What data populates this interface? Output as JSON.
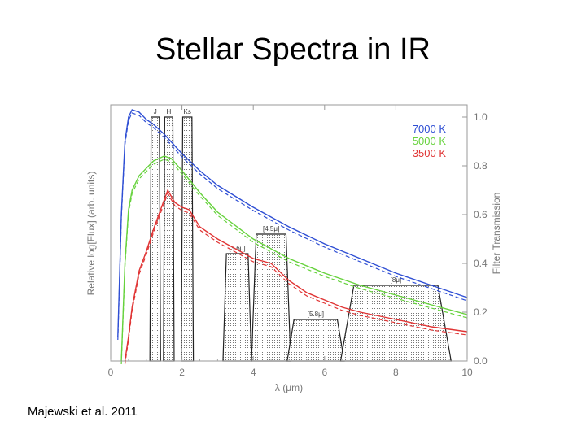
{
  "slide": {
    "title": "Stellar Spectra in IR",
    "citation": "Majewski et al. 2011"
  },
  "chart_data": {
    "type": "line",
    "xlabel": "λ (μm)",
    "ylabel": "Relative log[Flux] (arb. units)",
    "y2label": "Filter Transmission",
    "xlim": [
      0,
      10
    ],
    "y2lim": [
      0,
      1.05
    ],
    "xticks": [
      "0",
      "2",
      "4",
      "6",
      "8",
      "10"
    ],
    "y2ticks": [
      "0.0",
      "0.2",
      "0.4",
      "0.6",
      "0.8",
      "1.0"
    ],
    "grid": false,
    "legend": "top-right",
    "colors": {
      "7000 K": "#2f4fd4",
      "5000 K": "#66d23c",
      "3500 K": "#e03434",
      "filters": "#222222"
    },
    "series": [
      {
        "name": "7000 K",
        "x": [
          0.2,
          0.3,
          0.4,
          0.5,
          0.6,
          0.8,
          1.0,
          1.2,
          1.5,
          2.0,
          2.5,
          3.0,
          4.0,
          5.0,
          6.0,
          7.0,
          8.0,
          9.0,
          10.0
        ],
        "y": [
          0.1,
          0.6,
          0.9,
          1.0,
          1.03,
          1.02,
          0.99,
          0.97,
          0.93,
          0.85,
          0.78,
          0.72,
          0.63,
          0.55,
          0.48,
          0.42,
          0.36,
          0.31,
          0.26
        ]
      },
      {
        "name": "5000 K",
        "x": [
          0.3,
          0.4,
          0.5,
          0.6,
          0.8,
          1.0,
          1.2,
          1.5,
          1.7,
          2.0,
          2.5,
          3.0,
          4.0,
          5.0,
          6.0,
          7.0,
          8.0,
          9.0,
          10.0
        ],
        "y": [
          0.0,
          0.4,
          0.62,
          0.7,
          0.76,
          0.79,
          0.82,
          0.84,
          0.83,
          0.78,
          0.69,
          0.61,
          0.5,
          0.42,
          0.36,
          0.31,
          0.27,
          0.23,
          0.19
        ]
      },
      {
        "name": "3500 K",
        "x": [
          0.4,
          0.5,
          0.6,
          0.8,
          1.0,
          1.2,
          1.4,
          1.6,
          1.8,
          2.0,
          2.2,
          2.5,
          3.0,
          3.5,
          4.0,
          4.5,
          5.0,
          5.5,
          6.0,
          6.5,
          7.0,
          8.0,
          9.0,
          10.0
        ],
        "y": [
          0.0,
          0.1,
          0.22,
          0.37,
          0.45,
          0.54,
          0.62,
          0.7,
          0.65,
          0.63,
          0.62,
          0.55,
          0.5,
          0.46,
          0.42,
          0.4,
          0.33,
          0.28,
          0.25,
          0.22,
          0.2,
          0.17,
          0.14,
          0.12
        ]
      }
    ],
    "bands": [
      {
        "name": "J",
        "start": 1.1,
        "end": 1.4,
        "peak": 1.0
      },
      {
        "name": "H",
        "start": 1.48,
        "end": 1.78,
        "peak": 1.0
      },
      {
        "name": "Ks",
        "start": 1.98,
        "end": 2.32,
        "peak": 1.0
      },
      {
        "name": "[3.6μ]",
        "start": 3.15,
        "end": 3.95,
        "peak": 0.44
      },
      {
        "name": "[4.5μ]",
        "start": 3.95,
        "end": 5.05,
        "peak": 0.52
      },
      {
        "name": "[5.8μ]",
        "start": 4.95,
        "end": 6.55,
        "peak": 0.17
      },
      {
        "name": "[8μ]",
        "start": 6.45,
        "end": 9.55,
        "peak": 0.31
      }
    ]
  }
}
